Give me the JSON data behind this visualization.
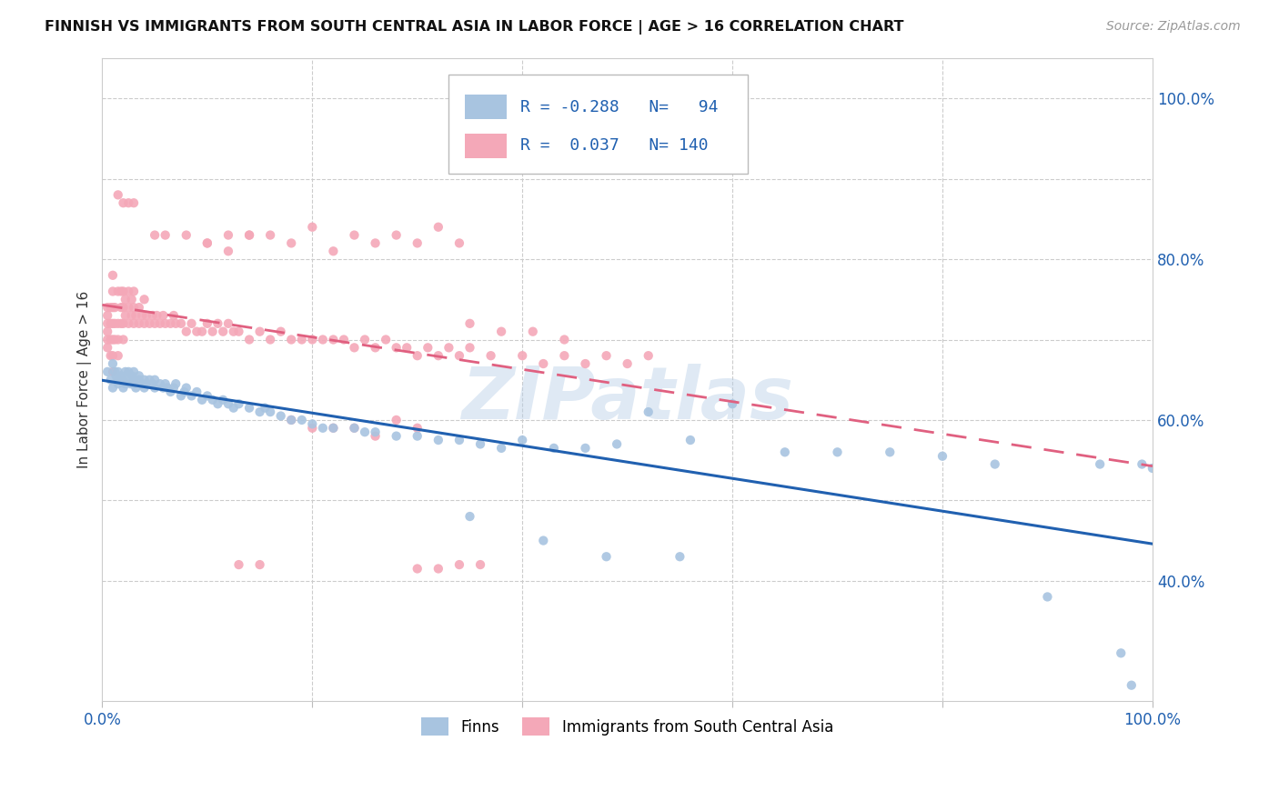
{
  "title": "FINNISH VS IMMIGRANTS FROM SOUTH CENTRAL ASIA IN LABOR FORCE | AGE > 16 CORRELATION CHART",
  "source": "Source: ZipAtlas.com",
  "ylabel": "In Labor Force | Age > 16",
  "watermark": "ZIPatlas",
  "finns_color": "#a8c4e0",
  "immigrants_color": "#f4a8b8",
  "finns_line_color": "#2060b0",
  "immigrants_line_color": "#e06080",
  "R_finns": -0.288,
  "N_finns": 94,
  "R_immigrants": 0.037,
  "N_immigrants": 140,
  "legend_label_finns": "Finns",
  "legend_label_immigrants": "Immigrants from South Central Asia",
  "ylim_low": 0.25,
  "ylim_high": 1.05,
  "finns_scatter_x": [
    0.005,
    0.008,
    0.01,
    0.01,
    0.012,
    0.013,
    0.015,
    0.015,
    0.015,
    0.018,
    0.018,
    0.02,
    0.02,
    0.022,
    0.022,
    0.025,
    0.025,
    0.027,
    0.028,
    0.03,
    0.03,
    0.03,
    0.032,
    0.035,
    0.035,
    0.038,
    0.04,
    0.04,
    0.042,
    0.045,
    0.048,
    0.05,
    0.05,
    0.055,
    0.058,
    0.06,
    0.062,
    0.065,
    0.068,
    0.07,
    0.075,
    0.078,
    0.08,
    0.085,
    0.09,
    0.095,
    0.1,
    0.105,
    0.11,
    0.115,
    0.12,
    0.125,
    0.13,
    0.14,
    0.15,
    0.155,
    0.16,
    0.17,
    0.18,
    0.19,
    0.2,
    0.21,
    0.22,
    0.24,
    0.25,
    0.26,
    0.28,
    0.3,
    0.32,
    0.34,
    0.36,
    0.38,
    0.4,
    0.43,
    0.46,
    0.49,
    0.52,
    0.56,
    0.6,
    0.65,
    0.7,
    0.75,
    0.8,
    0.85,
    0.9,
    0.95,
    0.97,
    0.98,
    0.99,
    1.0,
    0.35,
    0.42,
    0.48,
    0.55
  ],
  "finns_scatter_y": [
    0.66,
    0.65,
    0.67,
    0.64,
    0.66,
    0.655,
    0.65,
    0.66,
    0.645,
    0.65,
    0.655,
    0.65,
    0.64,
    0.66,
    0.645,
    0.66,
    0.65,
    0.645,
    0.655,
    0.65,
    0.645,
    0.66,
    0.64,
    0.65,
    0.655,
    0.645,
    0.65,
    0.64,
    0.645,
    0.65,
    0.645,
    0.64,
    0.65,
    0.645,
    0.64,
    0.645,
    0.64,
    0.635,
    0.64,
    0.645,
    0.63,
    0.635,
    0.64,
    0.63,
    0.635,
    0.625,
    0.63,
    0.625,
    0.62,
    0.625,
    0.62,
    0.615,
    0.62,
    0.615,
    0.61,
    0.615,
    0.61,
    0.605,
    0.6,
    0.6,
    0.595,
    0.59,
    0.59,
    0.59,
    0.585,
    0.585,
    0.58,
    0.58,
    0.575,
    0.575,
    0.57,
    0.565,
    0.575,
    0.565,
    0.565,
    0.57,
    0.61,
    0.575,
    0.62,
    0.56,
    0.56,
    0.56,
    0.555,
    0.545,
    0.38,
    0.545,
    0.31,
    0.27,
    0.545,
    0.54,
    0.48,
    0.45,
    0.43,
    0.43
  ],
  "imm_scatter_x": [
    0.005,
    0.005,
    0.005,
    0.005,
    0.005,
    0.005,
    0.008,
    0.008,
    0.008,
    0.008,
    0.01,
    0.01,
    0.01,
    0.01,
    0.01,
    0.01,
    0.01,
    0.012,
    0.012,
    0.012,
    0.015,
    0.015,
    0.015,
    0.015,
    0.018,
    0.018,
    0.018,
    0.02,
    0.02,
    0.02,
    0.02,
    0.022,
    0.022,
    0.025,
    0.025,
    0.025,
    0.028,
    0.028,
    0.03,
    0.03,
    0.03,
    0.032,
    0.035,
    0.035,
    0.038,
    0.04,
    0.04,
    0.042,
    0.045,
    0.048,
    0.05,
    0.052,
    0.055,
    0.058,
    0.06,
    0.065,
    0.068,
    0.07,
    0.075,
    0.08,
    0.085,
    0.09,
    0.095,
    0.1,
    0.105,
    0.11,
    0.115,
    0.12,
    0.125,
    0.13,
    0.14,
    0.15,
    0.16,
    0.17,
    0.18,
    0.19,
    0.2,
    0.21,
    0.22,
    0.23,
    0.24,
    0.25,
    0.26,
    0.27,
    0.28,
    0.29,
    0.3,
    0.31,
    0.32,
    0.33,
    0.34,
    0.35,
    0.37,
    0.4,
    0.42,
    0.44,
    0.46,
    0.48,
    0.5,
    0.52,
    0.03,
    0.025,
    0.02,
    0.015,
    0.1,
    0.12,
    0.14,
    0.16,
    0.18,
    0.2,
    0.22,
    0.24,
    0.26,
    0.28,
    0.3,
    0.32,
    0.34,
    0.18,
    0.2,
    0.22,
    0.24,
    0.26,
    0.28,
    0.3,
    0.05,
    0.06,
    0.08,
    0.1,
    0.12,
    0.14,
    0.35,
    0.38,
    0.41,
    0.44,
    0.34,
    0.36,
    0.32,
    0.3,
    0.15,
    0.13
  ],
  "imm_scatter_y": [
    0.69,
    0.7,
    0.71,
    0.72,
    0.73,
    0.74,
    0.68,
    0.7,
    0.72,
    0.74,
    0.66,
    0.68,
    0.7,
    0.72,
    0.74,
    0.76,
    0.78,
    0.7,
    0.72,
    0.74,
    0.68,
    0.7,
    0.72,
    0.76,
    0.72,
    0.74,
    0.76,
    0.7,
    0.72,
    0.74,
    0.76,
    0.73,
    0.75,
    0.72,
    0.74,
    0.76,
    0.73,
    0.75,
    0.72,
    0.74,
    0.76,
    0.73,
    0.72,
    0.74,
    0.73,
    0.72,
    0.75,
    0.73,
    0.72,
    0.73,
    0.72,
    0.73,
    0.72,
    0.73,
    0.72,
    0.72,
    0.73,
    0.72,
    0.72,
    0.71,
    0.72,
    0.71,
    0.71,
    0.72,
    0.71,
    0.72,
    0.71,
    0.72,
    0.71,
    0.71,
    0.7,
    0.71,
    0.7,
    0.71,
    0.7,
    0.7,
    0.7,
    0.7,
    0.7,
    0.7,
    0.69,
    0.7,
    0.69,
    0.7,
    0.69,
    0.69,
    0.68,
    0.69,
    0.68,
    0.69,
    0.68,
    0.69,
    0.68,
    0.68,
    0.67,
    0.68,
    0.67,
    0.68,
    0.67,
    0.68,
    0.87,
    0.87,
    0.87,
    0.88,
    0.82,
    0.83,
    0.83,
    0.83,
    0.82,
    0.84,
    0.81,
    0.83,
    0.82,
    0.83,
    0.82,
    0.84,
    0.82,
    0.6,
    0.59,
    0.59,
    0.59,
    0.58,
    0.6,
    0.59,
    0.83,
    0.83,
    0.83,
    0.82,
    0.81,
    0.83,
    0.72,
    0.71,
    0.71,
    0.7,
    0.42,
    0.42,
    0.415,
    0.415,
    0.42,
    0.42
  ]
}
